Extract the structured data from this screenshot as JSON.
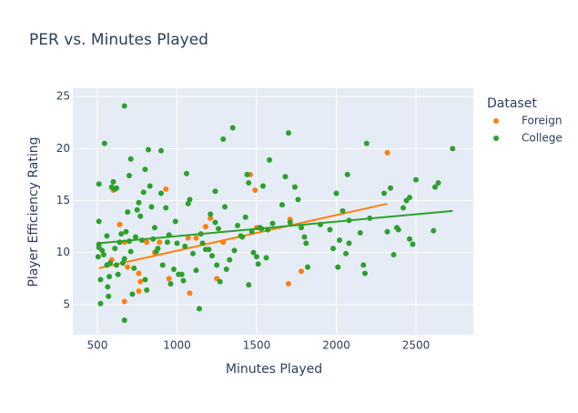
{
  "chart_data": {
    "type": "scatter",
    "title": "PER vs. Minutes Played",
    "x_label": "Minutes Played",
    "y_label": "Player Efficiency Rating",
    "legend_title": "Dataset",
    "legend_position": "right",
    "grid": true,
    "xlim": [
      346,
      2860
    ],
    "ylim": [
      2.1,
      25.8
    ],
    "xticks": [
      500,
      1000,
      1500,
      2000,
      2500
    ],
    "yticks": [
      5,
      10,
      15,
      20,
      25
    ],
    "series": [
      {
        "name": "Foreign",
        "color": "#ff7f0e",
        "x": [
          600,
          640,
          590,
          670,
          670,
          690,
          760,
          770,
          760,
          810,
          860,
          890,
          930,
          950,
          1080,
          1120,
          1180,
          1210,
          1250,
          1290,
          1460,
          1490,
          1500,
          1700,
          1710,
          1780,
          2320,
          1070
        ],
        "y": [
          16.0,
          12.7,
          9.3,
          11.0,
          5.3,
          8.6,
          8.0,
          7.2,
          6.3,
          11.0,
          10.0,
          11.0,
          16.1,
          7.5,
          6.1,
          11.4,
          12.5,
          13.3,
          7.5,
          11.0,
          17.5,
          16.0,
          12.4,
          7.0,
          13.2,
          8.2,
          19.6,
          11.4
        ],
        "trendline": {
          "x": [
            510,
            2320
          ],
          "y": [
            8.5,
            14.7
          ]
        }
      },
      {
        "name": "College",
        "color": "#2ca02c",
        "x": [
          510,
          510,
          510,
          510,
          505,
          520,
          520,
          530,
          540,
          545,
          560,
          560,
          565,
          570,
          575,
          580,
          590,
          600,
          610,
          620,
          610,
          620,
          630,
          640,
          650,
          660,
          670,
          670,
          670,
          680,
          690,
          700,
          710,
          700,
          710,
          720,
          730,
          740,
          750,
          760,
          770,
          780,
          790,
          800,
          800,
          810,
          820,
          830,
          840,
          850,
          860,
          870,
          880,
          900,
          900,
          910,
          930,
          940,
          950,
          960,
          980,
          990,
          1000,
          1010,
          1030,
          1040,
          1050,
          1060,
          1070,
          1080,
          1100,
          1120,
          1140,
          1150,
          1160,
          1180,
          1200,
          1210,
          1220,
          1240,
          1240,
          1250,
          1260,
          1270,
          1290,
          1300,
          1310,
          1330,
          1350,
          1360,
          1380,
          1400,
          1410,
          1430,
          1440,
          1450,
          1450,
          1470,
          1480,
          1500,
          1510,
          1520,
          1530,
          1540,
          1560,
          1570,
          1580,
          1600,
          1660,
          1680,
          1700,
          1710,
          1740,
          1760,
          1780,
          1800,
          1820,
          1810,
          1900,
          1960,
          1980,
          2000,
          2010,
          2020,
          2040,
          2060,
          2070,
          2080,
          2080,
          2150,
          2170,
          2180,
          2190,
          2210,
          2300,
          2320,
          2340,
          2360,
          2380,
          2390,
          2420,
          2440,
          2460,
          2460,
          2480,
          2500,
          2610,
          2620,
          2640,
          2730
        ],
        "y": [
          16.6,
          13.0,
          10.8,
          10.5,
          9.6,
          7.4,
          5.1,
          10.2,
          9.8,
          20.5,
          11.6,
          8.8,
          6.7,
          5.8,
          7.7,
          9.0,
          16.3,
          16.8,
          16.1,
          16.2,
          10.4,
          8.8,
          7.9,
          11.0,
          11.8,
          9.0,
          9.4,
          24.1,
          3.5,
          12.0,
          13.9,
          17.4,
          19.0,
          11.1,
          10.1,
          6.0,
          8.5,
          11.5,
          14.1,
          14.8,
          13.5,
          11.2,
          15.8,
          18.0,
          7.4,
          6.4,
          19.9,
          16.4,
          14.4,
          11.3,
          12.4,
          10.1,
          10.4,
          19.8,
          15.7,
          8.8,
          14.3,
          11.0,
          11.7,
          7.0,
          8.4,
          13.0,
          10.9,
          7.9,
          7.9,
          7.3,
          10.6,
          17.6,
          14.7,
          15.1,
          9.9,
          8.3,
          4.6,
          11.8,
          10.9,
          10.3,
          10.3,
          13.7,
          9.7,
          15.9,
          12.9,
          8.8,
          12.3,
          7.2,
          20.9,
          14.4,
          8.4,
          9.3,
          22.0,
          10.2,
          12.6,
          11.6,
          11.5,
          13.4,
          17.5,
          16.7,
          6.9,
          12.0,
          10.0,
          9.6,
          8.9,
          12.4,
          12.3,
          16.4,
          9.5,
          12.2,
          18.9,
          12.8,
          14.6,
          17.3,
          21.5,
          12.9,
          16.3,
          15.1,
          12.4,
          11.5,
          8.6,
          10.9,
          12.7,
          12.2,
          10.4,
          15.7,
          8.6,
          11.2,
          14.0,
          9.9,
          17.5,
          13.1,
          10.9,
          11.9,
          8.8,
          8.0,
          20.5,
          13.3,
          15.7,
          12.0,
          16.2,
          9.8,
          12.4,
          12.2,
          14.3,
          15.0,
          15.3,
          11.3,
          10.8,
          17.0,
          12.1,
          16.3,
          16.7,
          20.0
        ],
        "trendline": {
          "x": [
            510,
            2730
          ],
          "y": [
            10.9,
            14.0
          ]
        }
      }
    ]
  }
}
